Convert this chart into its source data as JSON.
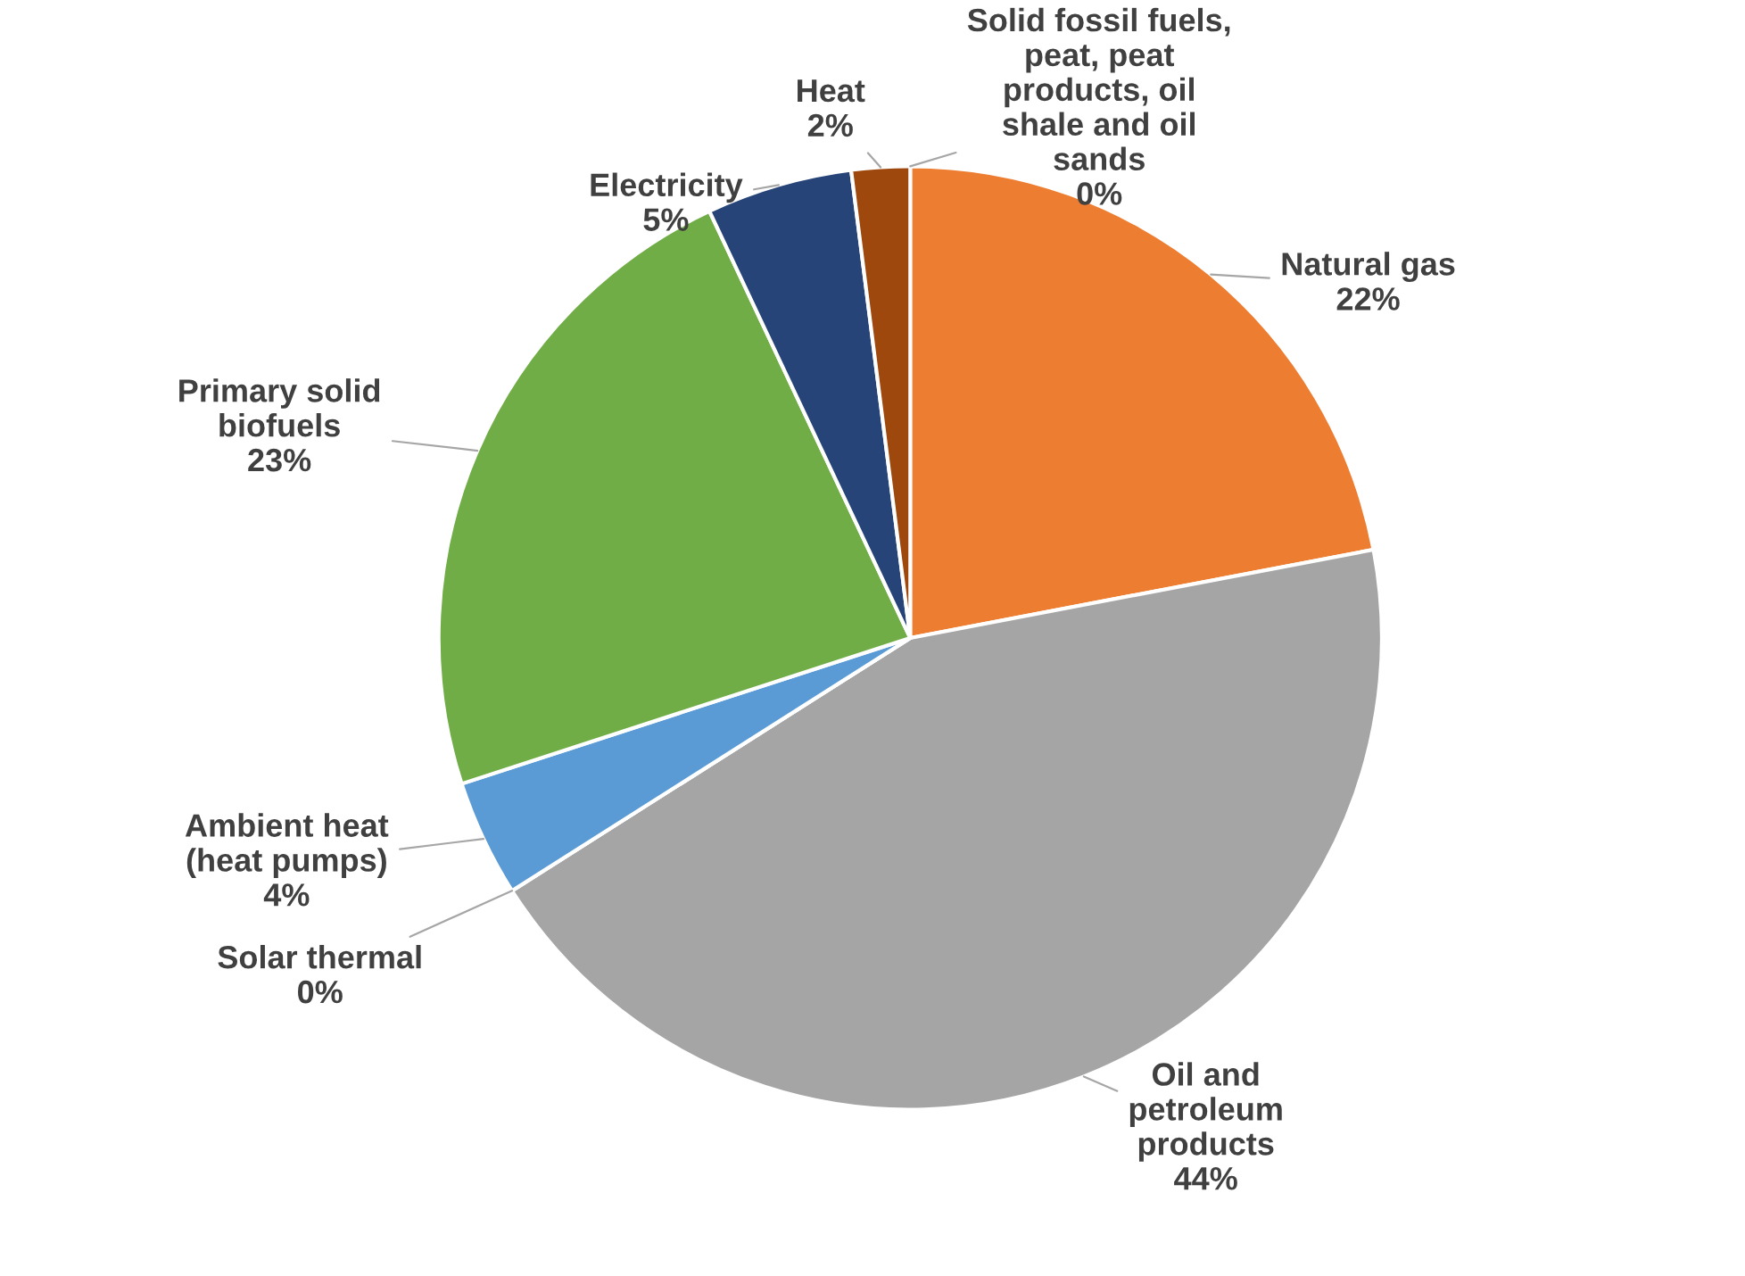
{
  "chart_data": {
    "type": "pie",
    "categories": [
      "Solid fossil fuels,\npeat, peat\nproducts, oil\nshale and oil\nsands",
      "Natural gas",
      "Oil and\npetroleum\nproducts",
      "Solar thermal",
      "Ambient heat\n(heat pumps)",
      "Primary solid\nbiofuels",
      "Electricity",
      "Heat"
    ],
    "values": [
      0,
      22,
      44,
      0,
      4,
      23,
      5,
      2
    ],
    "colors": [
      "#4472c4",
      "#ed7d31",
      "#a5a5a5",
      "#ffc000",
      "#5b9bd5",
      "#70ad47",
      "#264478",
      "#9e480e"
    ],
    "value_labels": [
      "0%",
      "22%",
      "44%",
      "0%",
      "4%",
      "23%",
      "5%",
      "2%"
    ]
  }
}
